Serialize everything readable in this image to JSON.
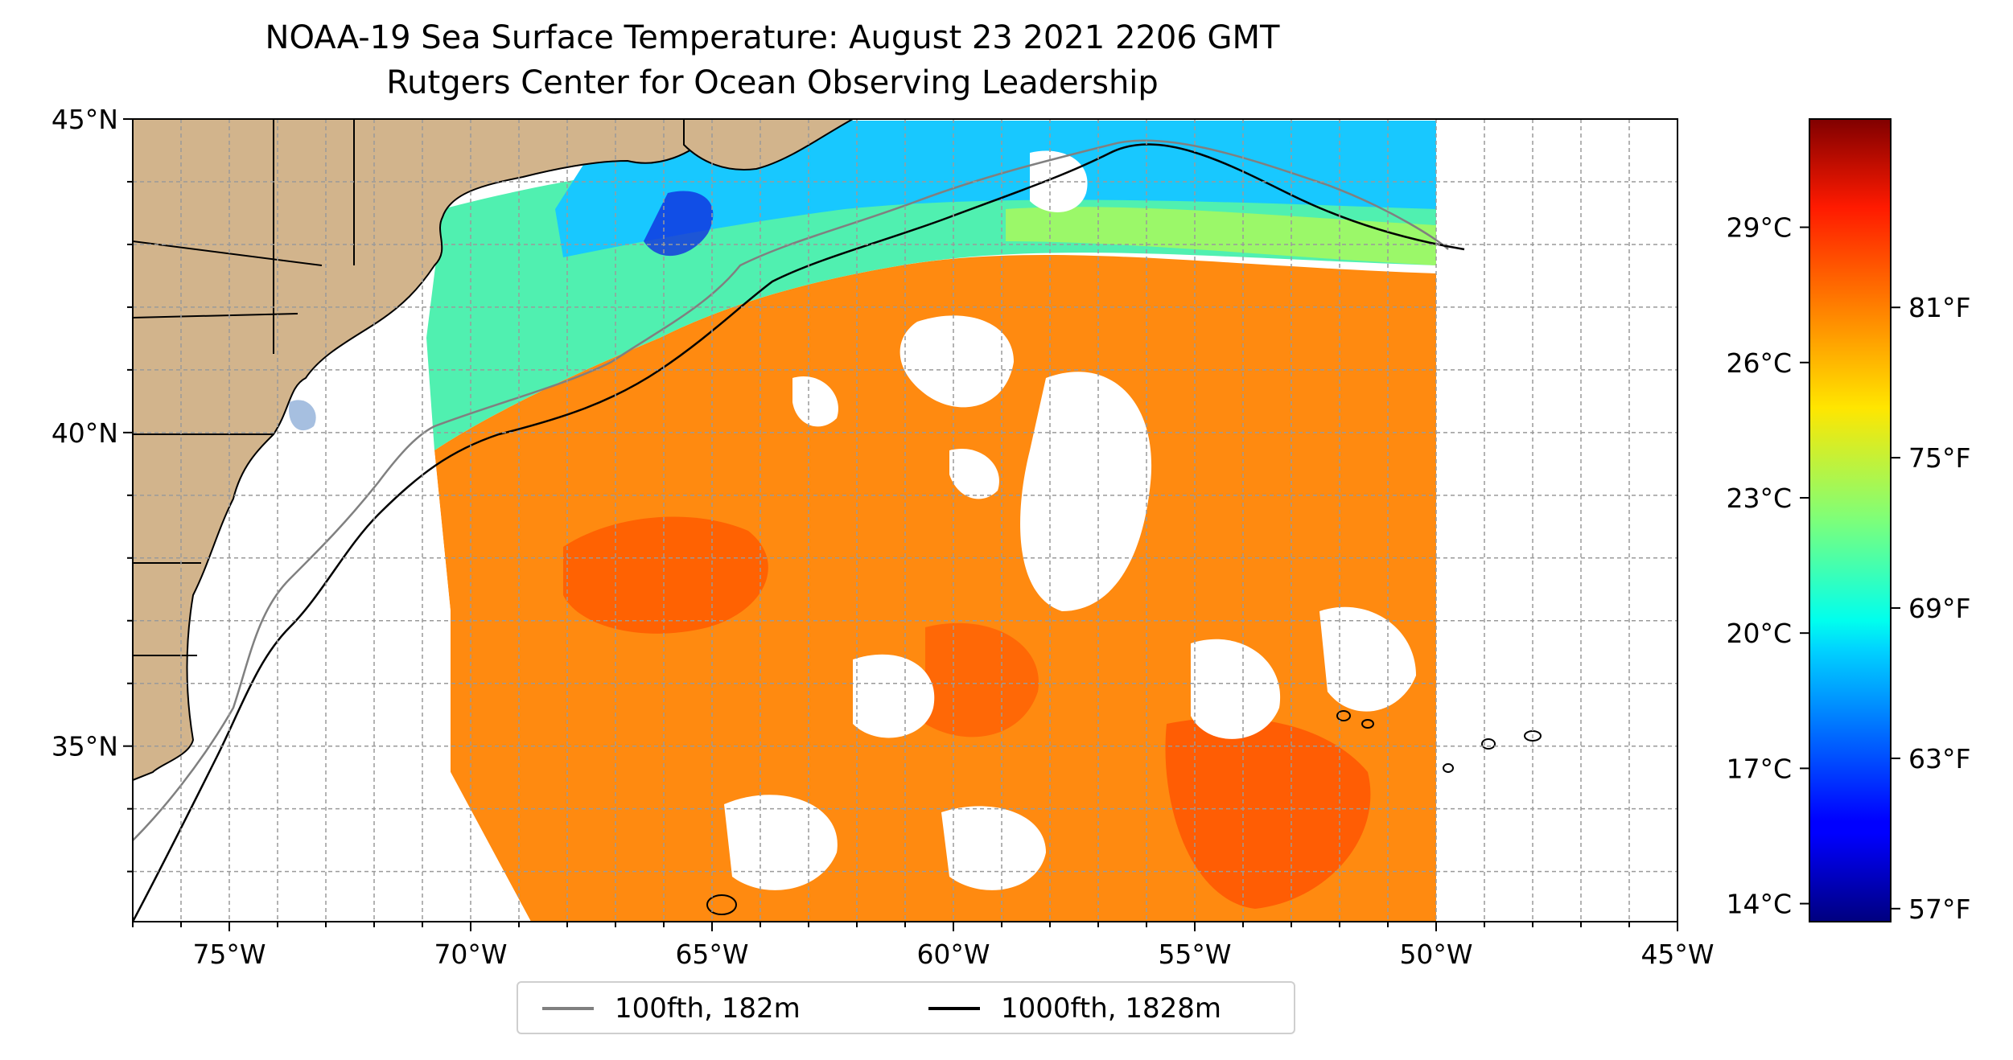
{
  "title": "NOAA-19 Sea Surface Temperature: August 23 2021 2206 GMT",
  "subtitle": "Rutgers Center for Ocean Observing Leadership",
  "map": {
    "lon_ticks": [
      "75°W",
      "70°W",
      "65°W",
      "60°W",
      "55°W",
      "50°W",
      "45°W"
    ],
    "lat_ticks": [
      "45°N",
      "40°N",
      "35°N"
    ],
    "lon_range": [
      -77,
      -45
    ],
    "lat_range": [
      32.2,
      45
    ],
    "gridlines": true,
    "land_color": "#d2b48c",
    "missing_data_color": "#ffffff"
  },
  "legend": {
    "placement": "bottom-center",
    "items": [
      {
        "label": "100fth, 182m",
        "color": "#808080"
      },
      {
        "label": "1000fth, 1828m",
        "color": "#000000"
      }
    ]
  },
  "colorbar": {
    "colormap": "jet",
    "celsius_ticks": [
      "29°C",
      "26°C",
      "23°C",
      "20°C",
      "17°C",
      "14°C"
    ],
    "fahrenheit_ticks": [
      "81°F",
      "75°F",
      "69°F",
      "63°F",
      "57°F"
    ]
  },
  "chart_data": {
    "type": "heatmap",
    "title": "NOAA-19 Sea Surface Temperature: August 23 2021 2206 GMT",
    "subtitle": "Rutgers Center for Ocean Observing Leadership",
    "xlim": [
      -77,
      -45
    ],
    "ylim": [
      32.2,
      45
    ],
    "x_ticks": [
      -75,
      -70,
      -65,
      -60,
      -55,
      -50,
      -45
    ],
    "y_ticks": [
      35,
      40,
      45
    ],
    "colorbar_range_celsius": [
      13.6,
      31.4
    ],
    "colorbar_celsius_ticks": [
      29,
      26,
      23,
      20,
      17,
      14
    ],
    "colorbar_fahrenheit_ticks": [
      81,
      75,
      69,
      63,
      57
    ],
    "series": [
      {
        "name": "100fth, 182m"
      },
      {
        "name": "1000fth, 1828m"
      }
    ]
  }
}
